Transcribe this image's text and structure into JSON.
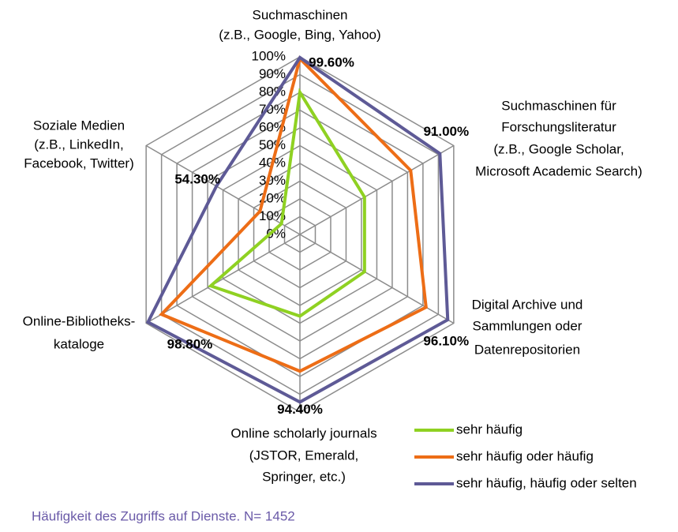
{
  "chart_data": {
    "type": "radar",
    "categories": [
      [
        "Suchmaschinen",
        "(z.B., Google, Bing, Yahoo)"
      ],
      [
        "Suchmaschinen für",
        "Forschungsliteratur",
        "(z.B., Google Scholar,",
        "Microsoft Academic Search)"
      ],
      [
        "Digital Archive und",
        "Sammlungen oder",
        "Datenrepositorien"
      ],
      [
        "Online scholarly journals",
        "(JSTOR, Emerald,",
        "Springer, etc.)"
      ],
      [
        "Online-Bibliotheks-",
        "kataloge"
      ],
      [
        "Soziale Medien",
        "(z.B., LinkedIn,",
        "Facebook, Twitter)"
      ]
    ],
    "series": [
      {
        "name": "sehr häufig",
        "color": "#8fd122",
        "values": [
          80,
          42,
          42,
          46,
          58,
          12
        ]
      },
      {
        "name": "sehr häufig oder häufig",
        "color": "#ed6d16",
        "values": [
          99,
          72,
          82,
          77,
          90,
          26
        ]
      },
      {
        "name": "sehr häufig, häufig oder selten",
        "color": "#5e5a96",
        "values": [
          99.6,
          91.0,
          96.1,
          94.4,
          98.8,
          54.3
        ],
        "value_labels": [
          "99.60%",
          "91.00%",
          "96.10%",
          "94.40%",
          "98.80%",
          "54.30%"
        ]
      }
    ],
    "ylim": [
      0,
      100
    ],
    "yticks": [
      {
        "value": 0,
        "label": "0%"
      },
      {
        "value": 10,
        "label": "10%"
      },
      {
        "value": 20,
        "label": "20%"
      },
      {
        "value": 30,
        "label": "30%"
      },
      {
        "value": 40,
        "label": "40%"
      },
      {
        "value": 50,
        "label": "50%"
      },
      {
        "value": 60,
        "label": "60%"
      },
      {
        "value": 70,
        "label": "70%"
      },
      {
        "value": 80,
        "label": "80%"
      },
      {
        "value": 90,
        "label": "90%"
      },
      {
        "value": 100,
        "label": "100%"
      }
    ],
    "grid": true,
    "legend": "bottom-right",
    "caption": "Häufigkeit des Zugriffs auf Dienste. N= 1452"
  }
}
